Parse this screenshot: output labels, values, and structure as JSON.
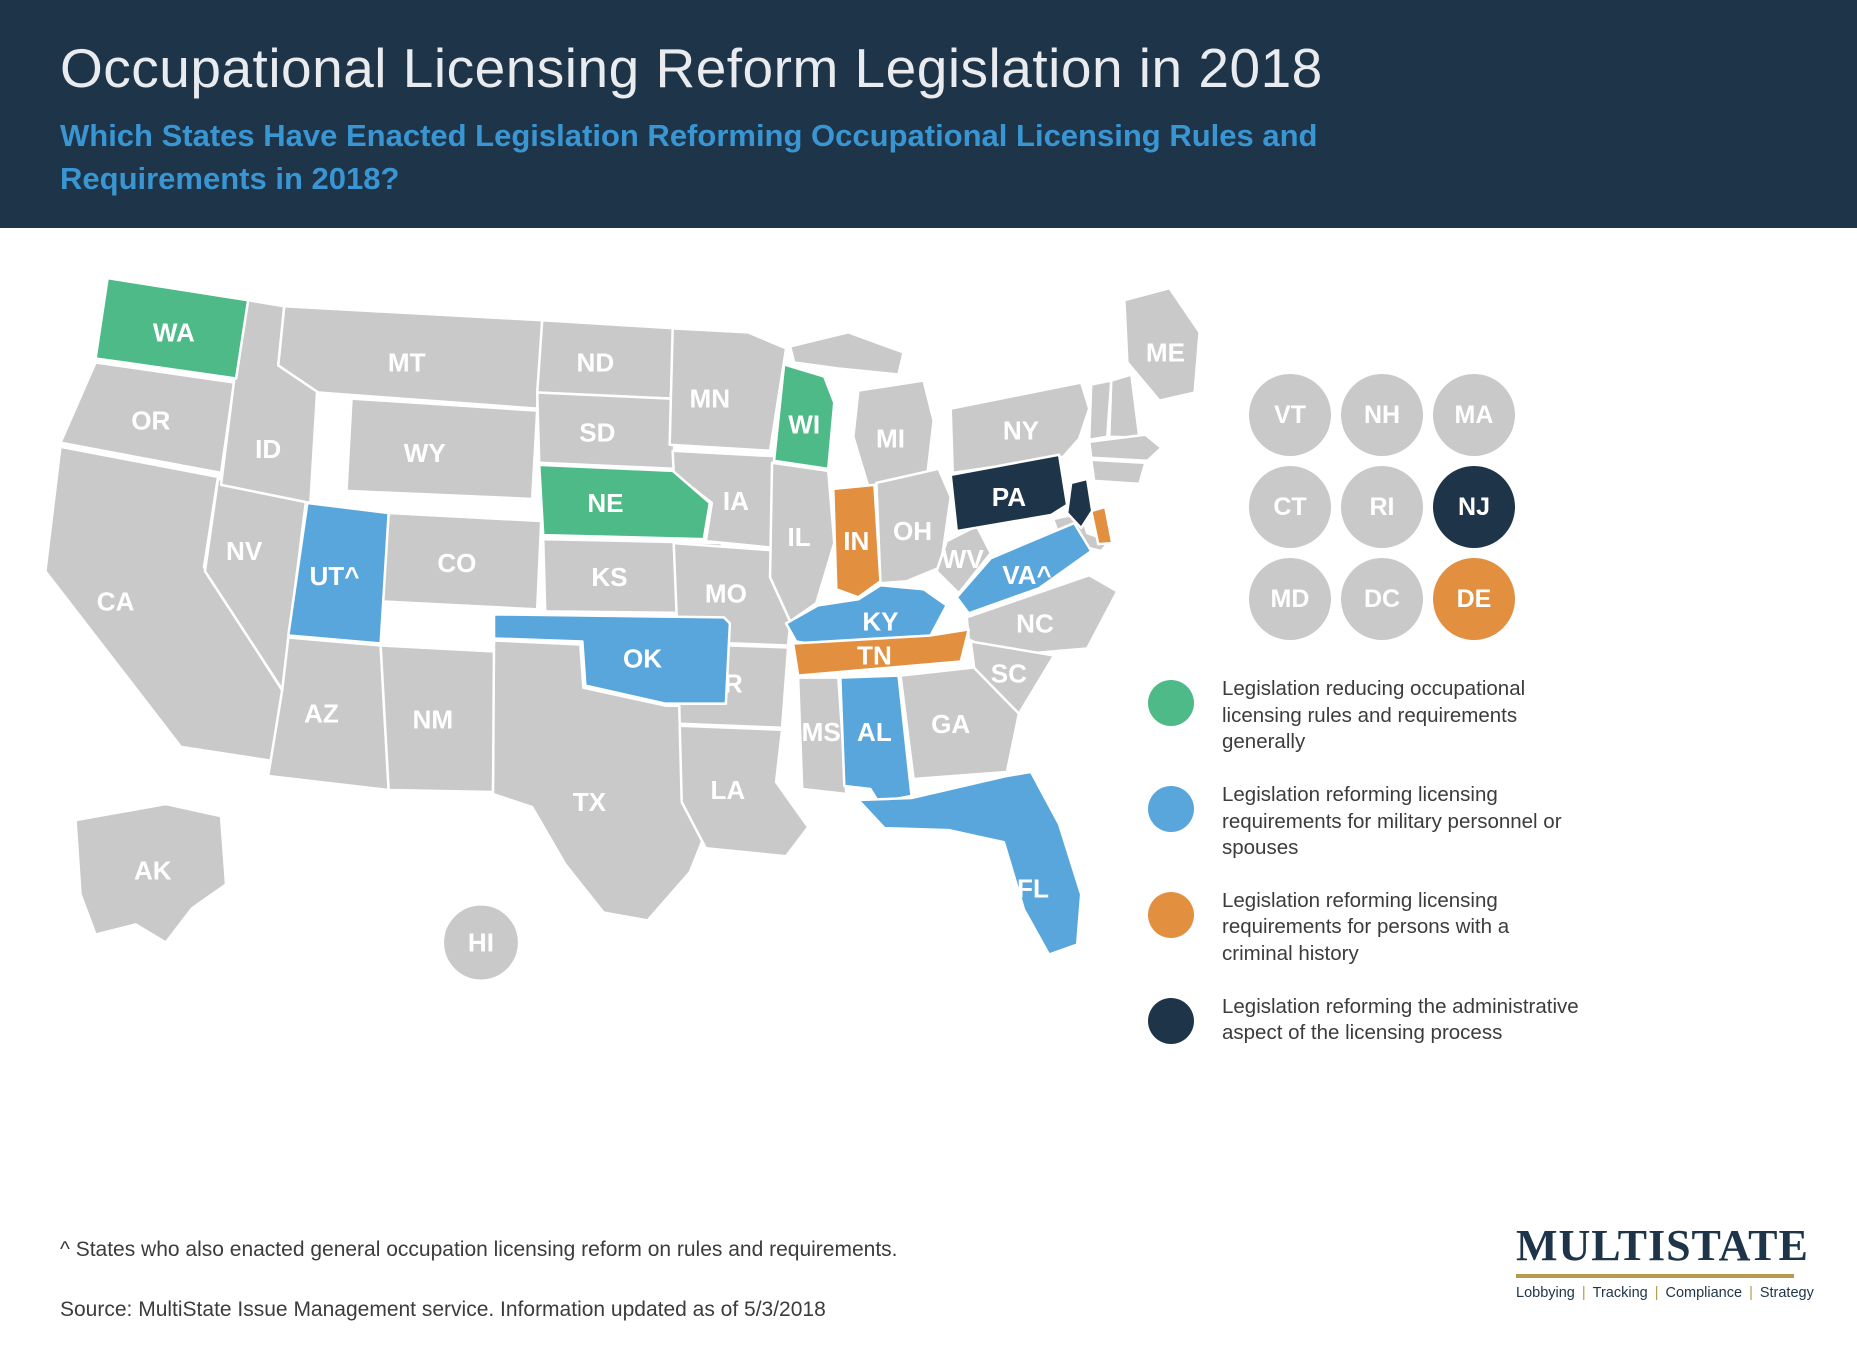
{
  "header": {
    "title": "Occupational Licensing Reform Legislation in 2018",
    "subtitle": "Which States Have Enacted Legislation Reforming Occupational Licensing Rules and Requirements in 2018?"
  },
  "category_colors": {
    "none": "#c9c9c9",
    "general": "#4dba87",
    "military": "#58a6db",
    "criminal": "#e28f40",
    "administrative": "#1e3449"
  },
  "map": {
    "states": [
      {
        "id": "OR",
        "label": "OR",
        "category": "none"
      },
      {
        "id": "CA",
        "label": "CA",
        "category": "none"
      },
      {
        "id": "NV",
        "label": "NV",
        "category": "none"
      },
      {
        "id": "ID",
        "label": "ID",
        "category": "none"
      },
      {
        "id": "MT",
        "label": "MT",
        "category": "none"
      },
      {
        "id": "WY",
        "label": "WY",
        "category": "none"
      },
      {
        "id": "AZ",
        "label": "AZ",
        "category": "none"
      },
      {
        "id": "CO",
        "label": "CO",
        "category": "none"
      },
      {
        "id": "NM",
        "label": "NM",
        "category": "none"
      },
      {
        "id": "ND",
        "label": "ND",
        "category": "none"
      },
      {
        "id": "SD",
        "label": "SD",
        "category": "none"
      },
      {
        "id": "KS",
        "label": "KS",
        "category": "none"
      },
      {
        "id": "TX",
        "label": "TX",
        "category": "none"
      },
      {
        "id": "MN",
        "label": "MN",
        "category": "none"
      },
      {
        "id": "IA",
        "label": "IA",
        "category": "none"
      },
      {
        "id": "MO",
        "label": "MO",
        "category": "none"
      },
      {
        "id": "AR",
        "label": "AR",
        "category": "none"
      },
      {
        "id": "LA",
        "label": "LA",
        "category": "none"
      },
      {
        "id": "IL",
        "label": "IL",
        "category": "none"
      },
      {
        "id": "MI",
        "label": "MI",
        "category": "none"
      },
      {
        "id": "OH",
        "label": "OH",
        "category": "none"
      },
      {
        "id": "WV",
        "label": "WV",
        "category": "none"
      },
      {
        "id": "NC",
        "label": "NC",
        "category": "none"
      },
      {
        "id": "SC",
        "label": "SC",
        "category": "none"
      },
      {
        "id": "GA",
        "label": "GA",
        "category": "none"
      },
      {
        "id": "MS",
        "label": "MS",
        "category": "none"
      },
      {
        "id": "NY",
        "label": "NY",
        "category": "none"
      },
      {
        "id": "ME",
        "label": "ME",
        "category": "none"
      },
      {
        "id": "VT",
        "label": "",
        "category": "none"
      },
      {
        "id": "NH",
        "label": "",
        "category": "none"
      },
      {
        "id": "MA",
        "label": "",
        "category": "none"
      },
      {
        "id": "CT",
        "label": "",
        "category": "none"
      },
      {
        "id": "MD",
        "label": "",
        "category": "none"
      },
      {
        "id": "AK",
        "label": "AK",
        "category": "none"
      },
      {
        "id": "HI",
        "label": "HI",
        "category": "none"
      },
      {
        "id": "WA",
        "label": "WA",
        "category": "general"
      },
      {
        "id": "NE",
        "label": "NE",
        "category": "general"
      },
      {
        "id": "WI",
        "label": "WI",
        "category": "general"
      },
      {
        "id": "UT",
        "label": "UT^",
        "category": "military"
      },
      {
        "id": "OK",
        "label": "OK",
        "category": "military"
      },
      {
        "id": "KY",
        "label": "KY",
        "category": "military"
      },
      {
        "id": "VA",
        "label": "VA^",
        "category": "military"
      },
      {
        "id": "AL",
        "label": "AL",
        "category": "military"
      },
      {
        "id": "FL",
        "label": "FL",
        "category": "military"
      },
      {
        "id": "IN",
        "label": "IN",
        "category": "criminal"
      },
      {
        "id": "TN",
        "label": "TN",
        "category": "criminal"
      },
      {
        "id": "DE",
        "label": "",
        "category": "criminal"
      },
      {
        "id": "PA",
        "label": "PA",
        "category": "administrative"
      },
      {
        "id": "NJ",
        "label": "",
        "category": "administrative"
      }
    ]
  },
  "state_circles": [
    {
      "label": "VT",
      "category": "none"
    },
    {
      "label": "NH",
      "category": "none"
    },
    {
      "label": "MA",
      "category": "none"
    },
    {
      "label": "CT",
      "category": "none"
    },
    {
      "label": "RI",
      "category": "none"
    },
    {
      "label": "NJ",
      "category": "administrative"
    },
    {
      "label": "MD",
      "category": "none"
    },
    {
      "label": "DC",
      "category": "none"
    },
    {
      "label": "DE",
      "category": "criminal"
    }
  ],
  "legend": [
    {
      "category": "general",
      "text": "Legislation reducing occupational licensing rules and requirements generally"
    },
    {
      "category": "military",
      "text": "Legislation reforming licensing requirements for military personnel or spouses"
    },
    {
      "category": "criminal",
      "text": "Legislation reforming licensing requirements for persons with a criminal history"
    },
    {
      "category": "administrative",
      "text": "Legislation reforming the administrative aspect of the licensing process"
    }
  ],
  "footnote": "^ States who also enacted general occupation licensing reform on rules and requirements.",
  "source": "Source: MultiState Issue Management service. Information updated as of 5/3/2018",
  "logo": {
    "name": "MULTISTATE",
    "tagline_items": [
      "Lobbying",
      "Tracking",
      "Compliance",
      "Strategy"
    ]
  }
}
